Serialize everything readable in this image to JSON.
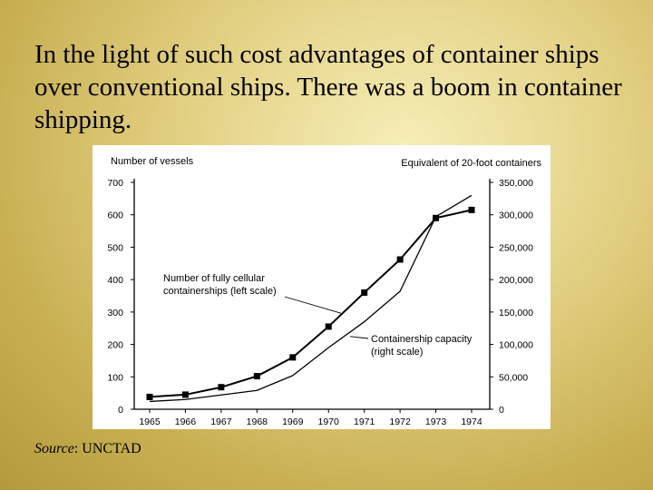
{
  "slide": {
    "text": "In the light of such cost advantages of container ships over conventional ships.  There was a boom in container shipping.",
    "source_label": "Source",
    "source_sep": ":  ",
    "source_value": "UNCTAD"
  },
  "chart_data": {
    "type": "line",
    "x": [
      "1965",
      "1966",
      "1967",
      "1968",
      "1969",
      "1970",
      "1971",
      "1972",
      "1973",
      "1974"
    ],
    "left_axis_title": "Number of vessels",
    "right_axis_title": "Equivalent of 20-foot containers",
    "left_ylim": [
      0,
      700
    ],
    "right_ylim": [
      0,
      350000
    ],
    "left_ticks": [
      "0",
      "100",
      "200",
      "300",
      "400",
      "500",
      "600",
      "700"
    ],
    "right_ticks": [
      "0",
      "50,000",
      "100,000",
      "150,000",
      "200,000",
      "250,000",
      "300,000",
      "350,000"
    ],
    "series": [
      {
        "name": "Number of fully cellular containerships (left scale)",
        "label_lines": [
          "Number of fully cellular",
          "containerships (left scale)"
        ],
        "axis": "left",
        "markers": true,
        "values": [
          38,
          45,
          68,
          102,
          160,
          255,
          360,
          462,
          590,
          615
        ]
      },
      {
        "name": "Containership capacity (right scale)",
        "label_lines": [
          "Containership capacity",
          "(right scale)"
        ],
        "axis": "right",
        "markers": false,
        "values": [
          12000,
          15000,
          22000,
          29000,
          52000,
          95000,
          135000,
          182000,
          297000,
          330000
        ]
      }
    ],
    "colors": {
      "line": "#000000",
      "panel": "#ffffff"
    }
  }
}
